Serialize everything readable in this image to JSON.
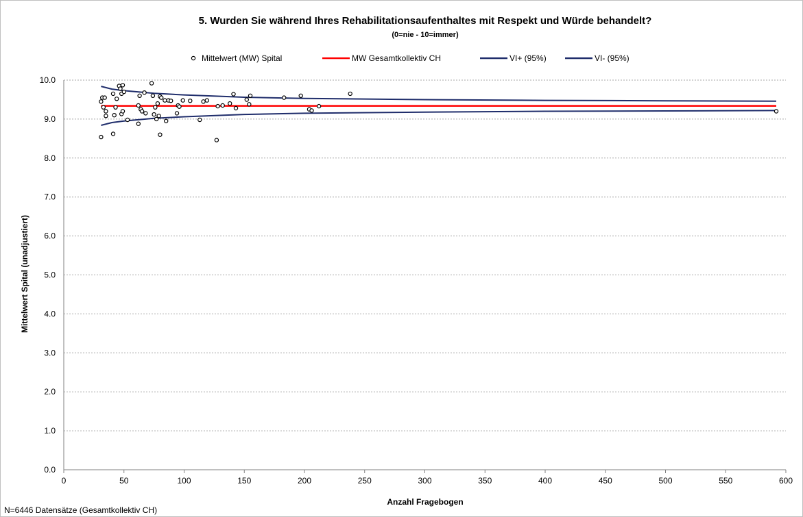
{
  "chart_data": {
    "type": "scatter",
    "title": "5. Wurden Sie während Ihres Rehabilitationsaufenthaltes mit Respekt und Würde behandelt?",
    "subtitle": "(0=nie - 10=immer)",
    "xlabel": "Anzahl Fragebogen",
    "ylabel": "Mittelwert Spital (unadjustiert)",
    "footnote": "N=6446 Datensätze (Gesamtkollektiv CH)",
    "xlim": [
      0,
      600
    ],
    "ylim": [
      0,
      10
    ],
    "x_ticks": [
      "0",
      "50",
      "100",
      "150",
      "200",
      "250",
      "300",
      "350",
      "400",
      "450",
      "500",
      "550",
      "600"
    ],
    "y_ticks": [
      "0.0",
      "1.0",
      "2.0",
      "3.0",
      "4.0",
      "5.0",
      "6.0",
      "7.0",
      "8.0",
      "9.0",
      "10.0"
    ],
    "grid": "horizontal dotted",
    "legend_position": "top",
    "legend": [
      {
        "label": "Mittelwert (MW) Spital",
        "marker": "circle",
        "color": "#000000"
      },
      {
        "label": "MW Gesamtkollektiv CH",
        "marker": "line",
        "color": "#ff0000"
      },
      {
        "label": "VI+ (95%)",
        "marker": "line",
        "color": "#1f2d6b"
      },
      {
        "label": "VI- (95%)",
        "marker": "line",
        "color": "#1f2d6b"
      }
    ],
    "mean": 9.34,
    "series": [
      {
        "name": "Mittelwert (MW) Spital",
        "points": [
          [
            31,
            8.54
          ],
          [
            31,
            9.45
          ],
          [
            32,
            9.55
          ],
          [
            33,
            9.3
          ],
          [
            34,
            9.55
          ],
          [
            35,
            9.2
          ],
          [
            35,
            9.08
          ],
          [
            41,
            8.62
          ],
          [
            41,
            9.65
          ],
          [
            42,
            9.1
          ],
          [
            43,
            9.3
          ],
          [
            44,
            9.52
          ],
          [
            46,
            9.85
          ],
          [
            47,
            9.78
          ],
          [
            48,
            9.65
          ],
          [
            48,
            9.13
          ],
          [
            49,
            9.2
          ],
          [
            49,
            9.87
          ],
          [
            50,
            9.7
          ],
          [
            53,
            8.98
          ],
          [
            62,
            8.88
          ],
          [
            62,
            9.35
          ],
          [
            63,
            9.6
          ],
          [
            64,
            9.25
          ],
          [
            65,
            9.2
          ],
          [
            67,
            9.68
          ],
          [
            68,
            9.15
          ],
          [
            73,
            9.92
          ],
          [
            74,
            9.6
          ],
          [
            75,
            9.12
          ],
          [
            76,
            9.3
          ],
          [
            77,
            9.0
          ],
          [
            78,
            9.4
          ],
          [
            79,
            9.08
          ],
          [
            80,
            8.6
          ],
          [
            80,
            9.58
          ],
          [
            81,
            9.55
          ],
          [
            84,
            9.48
          ],
          [
            85,
            8.95
          ],
          [
            87,
            9.48
          ],
          [
            89,
            9.47
          ],
          [
            94,
            9.15
          ],
          [
            95,
            9.35
          ],
          [
            96,
            9.32
          ],
          [
            99,
            9.48
          ],
          [
            105,
            9.47
          ],
          [
            113,
            8.98
          ],
          [
            116,
            9.45
          ],
          [
            119,
            9.48
          ],
          [
            127,
            8.46
          ],
          [
            128,
            9.33
          ],
          [
            132,
            9.35
          ],
          [
            138,
            9.4
          ],
          [
            141,
            9.64
          ],
          [
            143,
            9.28
          ],
          [
            152,
            9.5
          ],
          [
            154,
            9.38
          ],
          [
            155,
            9.6
          ],
          [
            183,
            9.55
          ],
          [
            197,
            9.6
          ],
          [
            204,
            9.25
          ],
          [
            206,
            9.22
          ],
          [
            212,
            9.33
          ],
          [
            238,
            9.65
          ],
          [
            592,
            9.2
          ]
        ]
      },
      {
        "name": "MW Gesamtkollektiv CH",
        "points": [
          [
            31,
            9.34
          ],
          [
            592,
            9.34
          ]
        ]
      },
      {
        "name": "VI+ (95%)",
        "points": [
          [
            31,
            9.84
          ],
          [
            40,
            9.77
          ],
          [
            50,
            9.73
          ],
          [
            75,
            9.66
          ],
          [
            100,
            9.62
          ],
          [
            150,
            9.56
          ],
          [
            200,
            9.53
          ],
          [
            300,
            9.5
          ],
          [
            400,
            9.48
          ],
          [
            500,
            9.47
          ],
          [
            592,
            9.46
          ]
        ]
      },
      {
        "name": "VI- (95%)",
        "points": [
          [
            31,
            8.84
          ],
          [
            40,
            8.91
          ],
          [
            50,
            8.95
          ],
          [
            75,
            9.02
          ],
          [
            100,
            9.06
          ],
          [
            150,
            9.12
          ],
          [
            200,
            9.15
          ],
          [
            300,
            9.18
          ],
          [
            400,
            9.2
          ],
          [
            500,
            9.21
          ],
          [
            592,
            9.22
          ]
        ]
      }
    ]
  }
}
